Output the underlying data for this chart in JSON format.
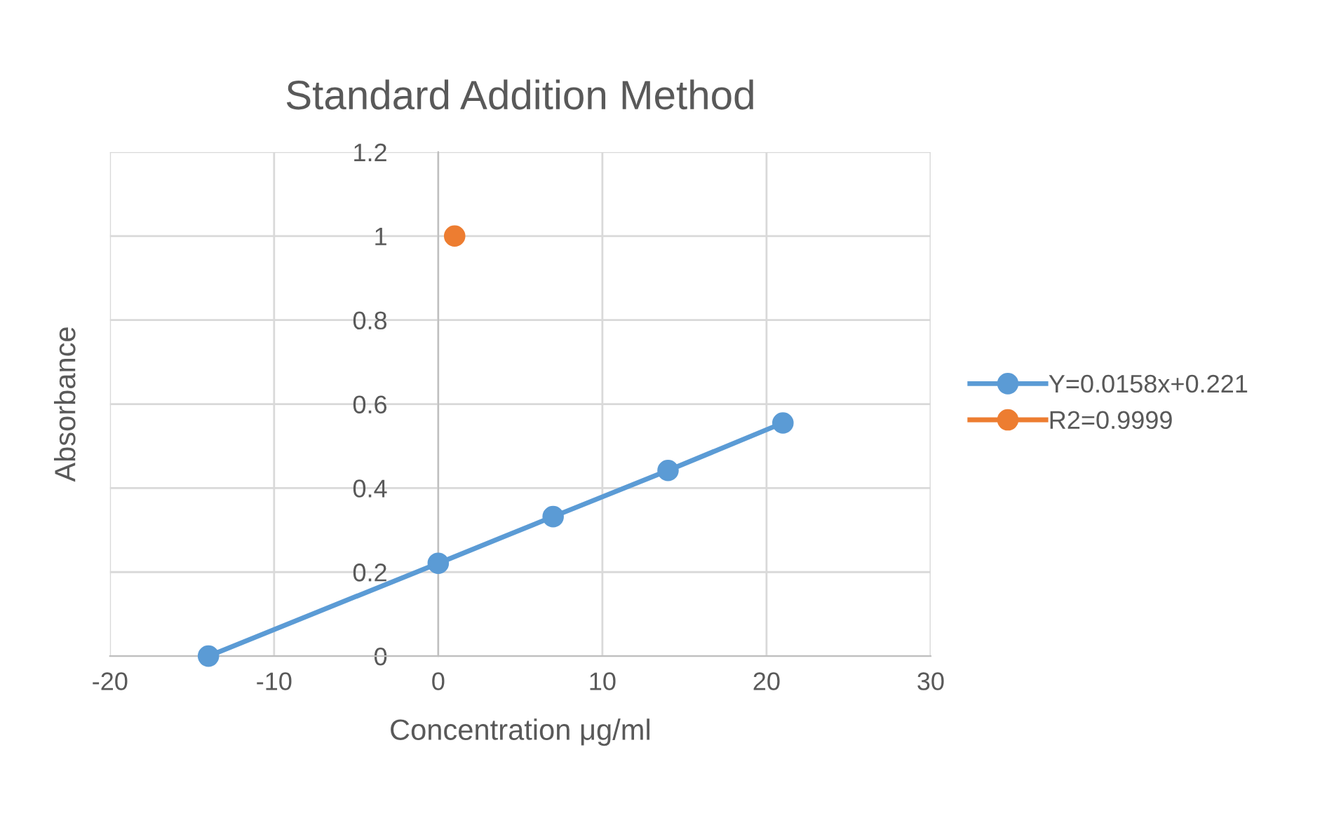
{
  "chart_data": {
    "type": "line",
    "title": "Standard Addition Method",
    "xlabel": "Concentration μg/ml",
    "ylabel": "Absorbance",
    "series": [
      {
        "name": "Y=0.0158x+0.221",
        "color": "#5b9bd5",
        "x": [
          -14,
          0,
          7,
          14,
          21
        ],
        "values": [
          0,
          0.221,
          0.332,
          0.442,
          0.555
        ]
      },
      {
        "name": "R2=0.9999",
        "color": "#ed7d31",
        "x": [
          1
        ],
        "values": [
          1
        ]
      }
    ],
    "xlim": [
      -20,
      30
    ],
    "xticks": [
      -20,
      -10,
      0,
      10,
      20,
      30
    ],
    "ylim": [
      0,
      1.2
    ],
    "yticks": [
      0,
      0.2,
      0.4,
      0.6,
      0.8,
      1,
      1.2
    ],
    "grid": true,
    "legend": "right",
    "marker": "circle",
    "line_style": "solid"
  }
}
